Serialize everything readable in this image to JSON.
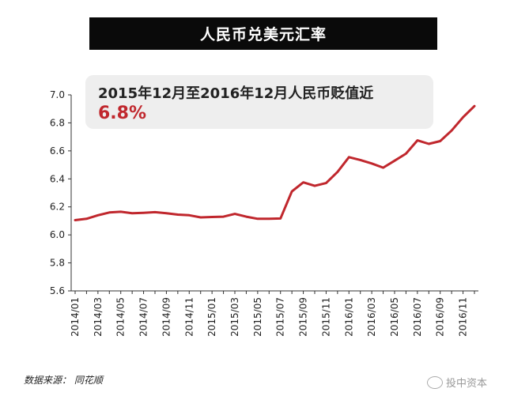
{
  "header": {
    "title": "人民币兑美元汇率"
  },
  "callout": {
    "line1": "2015年12月至2016年12月人民币贬值近",
    "line2": "6.8%"
  },
  "source": "数据来源： 同花顺",
  "watermark": "投中资本",
  "colors": {
    "line": "#c0272d",
    "axis": "#333333",
    "title_bg": "#0a0a0a",
    "callout_bg": "#eeeeee"
  },
  "chart_data": {
    "type": "line",
    "title": "",
    "xlabel": "",
    "ylabel": "",
    "ylim": [
      5.6,
      7.0
    ],
    "yticks": [
      "5.6",
      "5.8",
      "6.0",
      "6.2",
      "6.4",
      "6.6",
      "6.8",
      "7.0"
    ],
    "xtick_labels": [
      "2014/01",
      "2014/03",
      "2014/05",
      "2014/07",
      "2014/09",
      "2014/11",
      "2015/01",
      "2015/03",
      "2015/05",
      "2015/07",
      "2015/09",
      "2015/11",
      "2016/01",
      "2016/03",
      "2016/05",
      "2016/07",
      "2016/09",
      "2016/11"
    ],
    "x": [
      "2014/01",
      "2014/02",
      "2014/03",
      "2014/04",
      "2014/05",
      "2014/06",
      "2014/07",
      "2014/08",
      "2014/09",
      "2014/10",
      "2014/11",
      "2014/12",
      "2015/01",
      "2015/02",
      "2015/03",
      "2015/04",
      "2015/05",
      "2015/06",
      "2015/07",
      "2015/08",
      "2015/09",
      "2015/10",
      "2015/11",
      "2015/12",
      "2016/01",
      "2016/02",
      "2016/03",
      "2016/04",
      "2016/05",
      "2016/06",
      "2016/07",
      "2016/08",
      "2016/09",
      "2016/10",
      "2016/11",
      "2016/12"
    ],
    "series": [
      {
        "values": [
          6.105,
          6.115,
          6.14,
          6.16,
          6.165,
          6.155,
          6.158,
          6.162,
          6.155,
          6.145,
          6.14,
          6.125,
          6.128,
          6.13,
          6.15,
          6.13,
          6.115,
          6.115,
          6.117,
          6.31,
          6.375,
          6.35,
          6.37,
          6.45,
          6.555,
          6.535,
          6.51,
          6.48,
          6.53,
          6.58,
          6.675,
          6.65,
          6.67,
          6.745,
          6.84,
          6.92
        ]
      }
    ]
  }
}
